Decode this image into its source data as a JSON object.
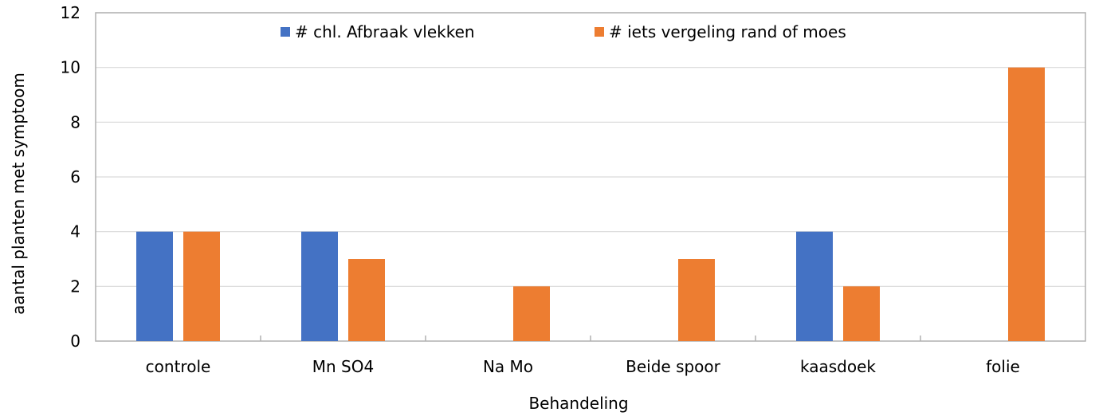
{
  "chart_data": {
    "type": "bar",
    "title": "",
    "xlabel": "Behandeling",
    "ylabel": "aantal planten met symptoom",
    "categories": [
      "controle",
      "Mn SO4",
      "Na Mo",
      "Beide spoor",
      "kaasdoek",
      "folie"
    ],
    "series": [
      {
        "name": "# chl. Afbraak vlekken",
        "color": "#4472C4",
        "values": [
          4,
          4,
          0,
          0,
          4,
          0
        ]
      },
      {
        "name": "# iets vergeling rand of moes",
        "color": "#ED7D31",
        "values": [
          4,
          3,
          2,
          3,
          2,
          10
        ]
      }
    ],
    "ylim": [
      0,
      12
    ],
    "yticks": [
      0,
      2,
      4,
      6,
      8,
      10,
      12
    ],
    "grid": true,
    "legend": "top-center"
  }
}
